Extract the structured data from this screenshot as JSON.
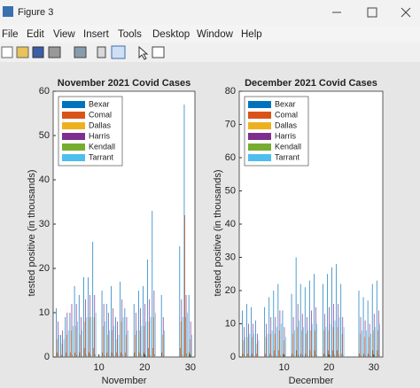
{
  "window": {
    "title": "Figure 3",
    "menu": [
      "File",
      "Edit",
      "View",
      "Insert",
      "Tools",
      "Desktop",
      "Window",
      "Help"
    ]
  },
  "chart_data": [
    {
      "type": "bar",
      "title": "November 2021 Covid Cases",
      "xlabel": "November",
      "ylabel": "tested positive (in thousands)",
      "x": [
        1,
        2,
        3,
        4,
        5,
        6,
        7,
        8,
        9,
        10,
        11,
        12,
        13,
        14,
        15,
        16,
        17,
        18,
        19,
        20,
        21,
        22,
        23,
        24,
        25,
        26,
        27,
        28,
        29,
        30
      ],
      "xlim": [
        0,
        31
      ],
      "xticks": [
        10,
        20,
        30
      ],
      "ylim": [
        0,
        60
      ],
      "yticks": [
        0,
        10,
        20,
        30,
        40,
        50,
        60
      ],
      "legend": "upper left",
      "series": [
        {
          "name": "Bexar",
          "color": "#0072bd",
          "values": [
            11,
            5,
            9,
            10,
            16,
            14,
            18,
            18,
            26,
            0,
            15,
            12,
            16,
            9,
            17,
            11,
            0,
            12,
            15,
            16,
            22,
            33,
            0,
            14,
            0,
            0,
            0,
            25,
            57,
            14
          ]
        },
        {
          "name": "Comal",
          "color": "#d95319",
          "values": [
            1,
            0.5,
            1,
            1,
            1,
            1,
            2,
            1,
            2,
            0,
            1,
            1,
            1,
            1,
            1,
            1,
            0,
            1,
            1,
            1,
            2,
            2,
            0,
            1,
            0,
            0,
            0,
            2,
            32,
            1
          ]
        },
        {
          "name": "Dallas",
          "color": "#edb120",
          "values": [
            4,
            3,
            5,
            6,
            7,
            5,
            8,
            9,
            9,
            0,
            7,
            5,
            6,
            4,
            8,
            5,
            0,
            5,
            6,
            7,
            8,
            9,
            0,
            5,
            0,
            0,
            0,
            8,
            9,
            4
          ]
        },
        {
          "name": "Harris",
          "color": "#7e2f8e",
          "values": [
            8,
            6,
            10,
            12,
            12,
            9,
            13,
            14,
            14,
            0,
            12,
            10,
            11,
            8,
            13,
            9,
            0,
            10,
            11,
            12,
            13,
            15,
            0,
            9,
            0,
            0,
            0,
            13,
            14,
            8
          ]
        },
        {
          "name": "Kendall",
          "color": "#77ac30",
          "values": [
            0.3,
            0.2,
            0.3,
            0.4,
            0.4,
            0.3,
            0.5,
            0.5,
            0.6,
            0,
            0.4,
            0.3,
            0.4,
            0.3,
            0.5,
            0.3,
            0,
            0.3,
            0.4,
            0.4,
            0.5,
            0.6,
            0,
            0.3,
            0,
            0,
            0,
            0.5,
            0.8,
            0.3
          ]
        },
        {
          "name": "Tarrant",
          "color": "#4dbeee",
          "values": [
            5,
            4,
            6,
            7,
            8,
            6,
            9,
            9,
            10,
            0,
            8,
            6,
            7,
            5,
            9,
            6,
            0,
            6,
            7,
            8,
            9,
            10,
            0,
            6,
            0,
            0,
            0,
            9,
            10,
            5
          ]
        }
      ]
    },
    {
      "type": "bar",
      "title": "December 2021 Covid Cases",
      "xlabel": "December",
      "ylabel": "tested positive (in thousands)",
      "x": [
        1,
        2,
        3,
        4,
        5,
        6,
        7,
        8,
        9,
        10,
        11,
        12,
        13,
        14,
        15,
        16,
        17,
        18,
        19,
        20,
        21,
        22,
        23,
        24,
        25,
        26,
        27,
        28,
        29,
        30,
        31
      ],
      "xlim": [
        0,
        32
      ],
      "xticks": [
        10,
        20,
        30
      ],
      "ylim": [
        0,
        80
      ],
      "yticks": [
        0,
        10,
        20,
        30,
        40,
        50,
        60,
        70,
        80
      ],
      "legend": "upper left",
      "series": [
        {
          "name": "Bexar",
          "color": "#0072bd",
          "values": [
            14,
            16,
            15,
            11,
            0,
            15,
            18,
            20,
            22,
            14,
            0,
            19,
            30,
            22,
            21,
            23,
            25,
            0,
            22,
            25,
            27,
            28,
            22,
            0,
            0,
            0,
            20,
            18,
            17,
            22,
            23
          ]
        },
        {
          "name": "Comal",
          "color": "#d95319",
          "values": [
            1,
            1,
            1,
            1,
            0,
            1,
            1,
            2,
            2,
            1,
            0,
            1,
            2,
            1,
            1,
            2,
            2,
            0,
            1,
            2,
            2,
            2,
            1,
            0,
            0,
            0,
            1,
            1,
            1,
            2,
            2
          ]
        },
        {
          "name": "Dallas",
          "color": "#edb120",
          "values": [
            5,
            6,
            6,
            4,
            0,
            6,
            7,
            7,
            8,
            5,
            0,
            7,
            9,
            8,
            7,
            8,
            8,
            0,
            8,
            8,
            9,
            9,
            7,
            0,
            0,
            0,
            7,
            6,
            6,
            8,
            8
          ]
        },
        {
          "name": "Harris",
          "color": "#7e2f8e",
          "values": [
            9,
            10,
            10,
            7,
            0,
            10,
            12,
            12,
            14,
            9,
            0,
            12,
            16,
            13,
            12,
            14,
            15,
            0,
            13,
            15,
            16,
            16,
            12,
            0,
            0,
            0,
            12,
            11,
            10,
            13,
            14
          ]
        },
        {
          "name": "Kendall",
          "color": "#77ac30",
          "values": [
            0.4,
            0.4,
            0.4,
            0.3,
            0,
            0.4,
            0.5,
            0.5,
            0.6,
            0.4,
            0,
            0.5,
            0.7,
            0.5,
            0.5,
            0.6,
            0.6,
            0,
            0.5,
            0.6,
            0.7,
            0.7,
            0.5,
            0,
            0,
            0,
            0.5,
            0.4,
            0.4,
            0.6,
            0.6
          ]
        },
        {
          "name": "Tarrant",
          "color": "#4dbeee",
          "values": [
            6,
            7,
            7,
            5,
            0,
            7,
            8,
            9,
            10,
            6,
            0,
            8,
            11,
            9,
            8,
            10,
            10,
            0,
            9,
            10,
            11,
            12,
            9,
            0,
            0,
            0,
            8,
            8,
            7,
            9,
            10
          ]
        }
      ]
    }
  ]
}
